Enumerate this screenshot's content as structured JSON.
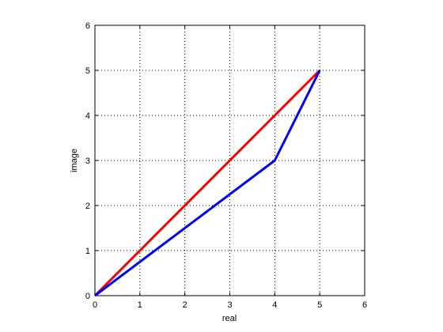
{
  "chart_data": {
    "type": "line",
    "x_label": "real",
    "y_label": "image",
    "x": [
      0,
      4,
      5
    ],
    "series": [
      {
        "name": "red",
        "color": "#ff0000",
        "values": [
          0,
          4,
          5
        ]
      },
      {
        "name": "blue",
        "color": "#0000ff",
        "values": [
          0,
          3,
          5
        ]
      }
    ],
    "xlim": [
      0,
      6
    ],
    "ylim": [
      0,
      6
    ],
    "xticks": [
      0,
      1,
      2,
      3,
      4,
      5,
      6
    ],
    "yticks": [
      0,
      1,
      2,
      3,
      4,
      5,
      6
    ],
    "grid": true
  }
}
